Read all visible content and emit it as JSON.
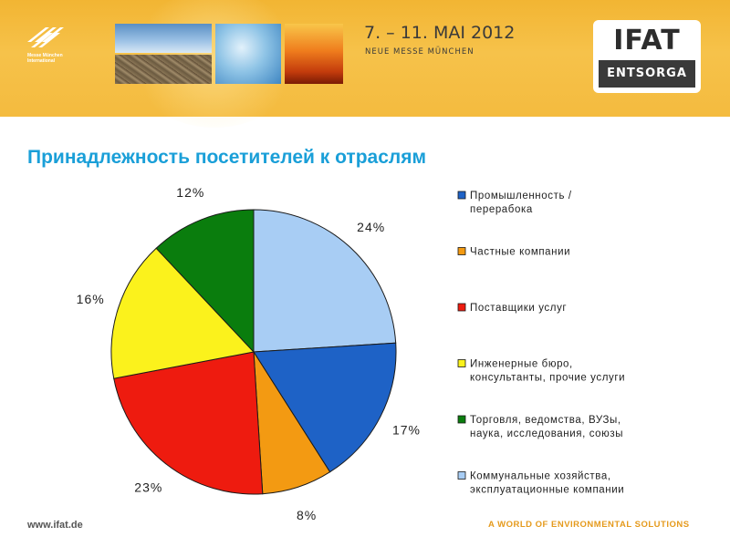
{
  "header": {
    "organizer_lines": [
      "Messe München",
      "International"
    ],
    "event_dates": "7. – 11. MAI 2012",
    "venue": "NEUE MESSE MÜNCHEN",
    "logo_top": "IFAT",
    "logo_bottom": "ENTSORGA",
    "icons": [
      "messe-muenchen-logo-icon",
      "sky-photo",
      "soil-photo",
      "water-photo",
      "fire-photo"
    ]
  },
  "title": "Принадлежность посетителей к отраслям",
  "chart_data": {
    "type": "pie",
    "start_angle_deg": 0,
    "direction": "clockwise",
    "slices": [
      {
        "label": "Коммунальные хозяйства, эксплуатационные компании",
        "value": 24,
        "text": "24%",
        "color": "#a8cdf4"
      },
      {
        "label": "Промышленность / перерабока",
        "value": 17,
        "text": "17%",
        "color": "#1e62c6"
      },
      {
        "label": "Частные компании",
        "value": 8,
        "text": "8%",
        "color": "#f39a12"
      },
      {
        "label": "Поставщики услуг",
        "value": 23,
        "text": "23%",
        "color": "#ee1b0f"
      },
      {
        "label": "Инженерные бюро, консультанты, прочие услуги",
        "value": 16,
        "text": "16%",
        "color": "#fbf21c"
      },
      {
        "label": "Торговля, ведомства, ВУЗы, наука, исследования, союзы",
        "value": 12,
        "text": "12%",
        "color": "#0a7d0d"
      }
    ],
    "legend": {
      "position": "right",
      "entries": [
        {
          "lines": [
            "Промышленность /",
            "перерабока"
          ],
          "color": "#1e62c6"
        },
        {
          "lines": [
            "Частные компании"
          ],
          "color": "#f39a12"
        },
        {
          "lines": [
            "Поставщики услуг"
          ],
          "color": "#ee1b0f"
        },
        {
          "lines": [
            "Инженерные бюро,",
            "консультанты, прочие услуги"
          ],
          "color": "#fbf21c"
        },
        {
          "lines": [
            "Торговля, ведомства, ВУЗы,",
            "наука, исследования, союзы"
          ],
          "color": "#0a7d0d"
        },
        {
          "lines": [
            "Коммунальные хозяйства,",
            "эксплуатационные компании"
          ],
          "color": "#a8cdf4"
        }
      ]
    }
  },
  "footer": {
    "url": "www.ifat.de",
    "slogan": "A WORLD OF ENVIRONMENTAL SOLUTIONS"
  }
}
